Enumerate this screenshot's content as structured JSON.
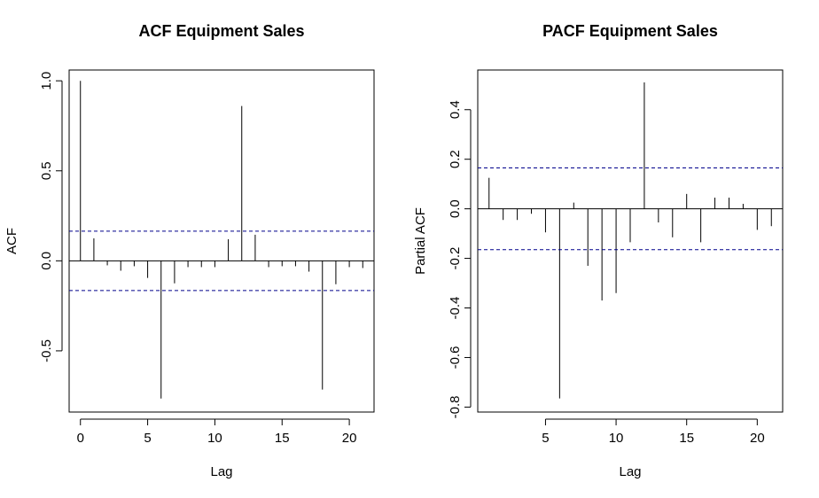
{
  "chart_data": [
    {
      "type": "bar",
      "title": "ACF Equipment Sales",
      "xlabel": "Lag",
      "ylabel": "ACF",
      "xlim": [
        -0.84,
        21.84
      ],
      "ylim": [
        -0.84,
        1.06
      ],
      "xticks": [
        0,
        5,
        10,
        15,
        20
      ],
      "yticks": [
        -0.5,
        0.0,
        0.5,
        1.0
      ],
      "ytick_labels": [
        "-0.5",
        "0.0",
        "0.5",
        "1.0"
      ],
      "ci": 0.165,
      "lags": [
        0,
        1,
        2,
        3,
        4,
        5,
        6,
        7,
        8,
        9,
        10,
        11,
        12,
        13,
        14,
        15,
        16,
        17,
        18,
        19,
        20,
        21
      ],
      "values": [
        1.0,
        0.125,
        -0.025,
        -0.055,
        -0.03,
        -0.095,
        -0.765,
        -0.125,
        -0.035,
        -0.035,
        -0.035,
        0.12,
        0.86,
        0.145,
        -0.035,
        -0.03,
        -0.03,
        -0.06,
        -0.715,
        -0.13,
        -0.035,
        -0.04
      ],
      "colors": {
        "bars": "#000000",
        "ci_lines": "#00008B"
      }
    },
    {
      "type": "bar",
      "title": "PACF Equipment Sales",
      "xlabel": "Lag",
      "ylabel": "Partial ACF",
      "xlim": [
        0.2,
        21.8
      ],
      "ylim": [
        -0.82,
        0.56
      ],
      "xticks": [
        5,
        10,
        15,
        20
      ],
      "yticks": [
        -0.8,
        -0.6,
        -0.4,
        -0.2,
        0.0,
        0.2,
        0.4
      ],
      "ytick_labels": [
        "-0.8",
        "-0.6",
        "-0.4",
        "-0.2",
        "0.0",
        "0.2",
        "0.4"
      ],
      "ci": 0.165,
      "lags": [
        1,
        2,
        3,
        4,
        5,
        6,
        7,
        8,
        9,
        10,
        11,
        12,
        13,
        14,
        15,
        16,
        17,
        18,
        19,
        20,
        21
      ],
      "values": [
        0.125,
        -0.045,
        -0.045,
        -0.02,
        -0.095,
        -0.765,
        0.025,
        -0.23,
        -0.37,
        -0.34,
        -0.135,
        0.51,
        -0.055,
        -0.115,
        0.06,
        -0.135,
        0.045,
        0.045,
        0.02,
        -0.085,
        -0.07
      ],
      "colors": {
        "bars": "#000000",
        "ci_lines": "#00008B"
      }
    }
  ]
}
